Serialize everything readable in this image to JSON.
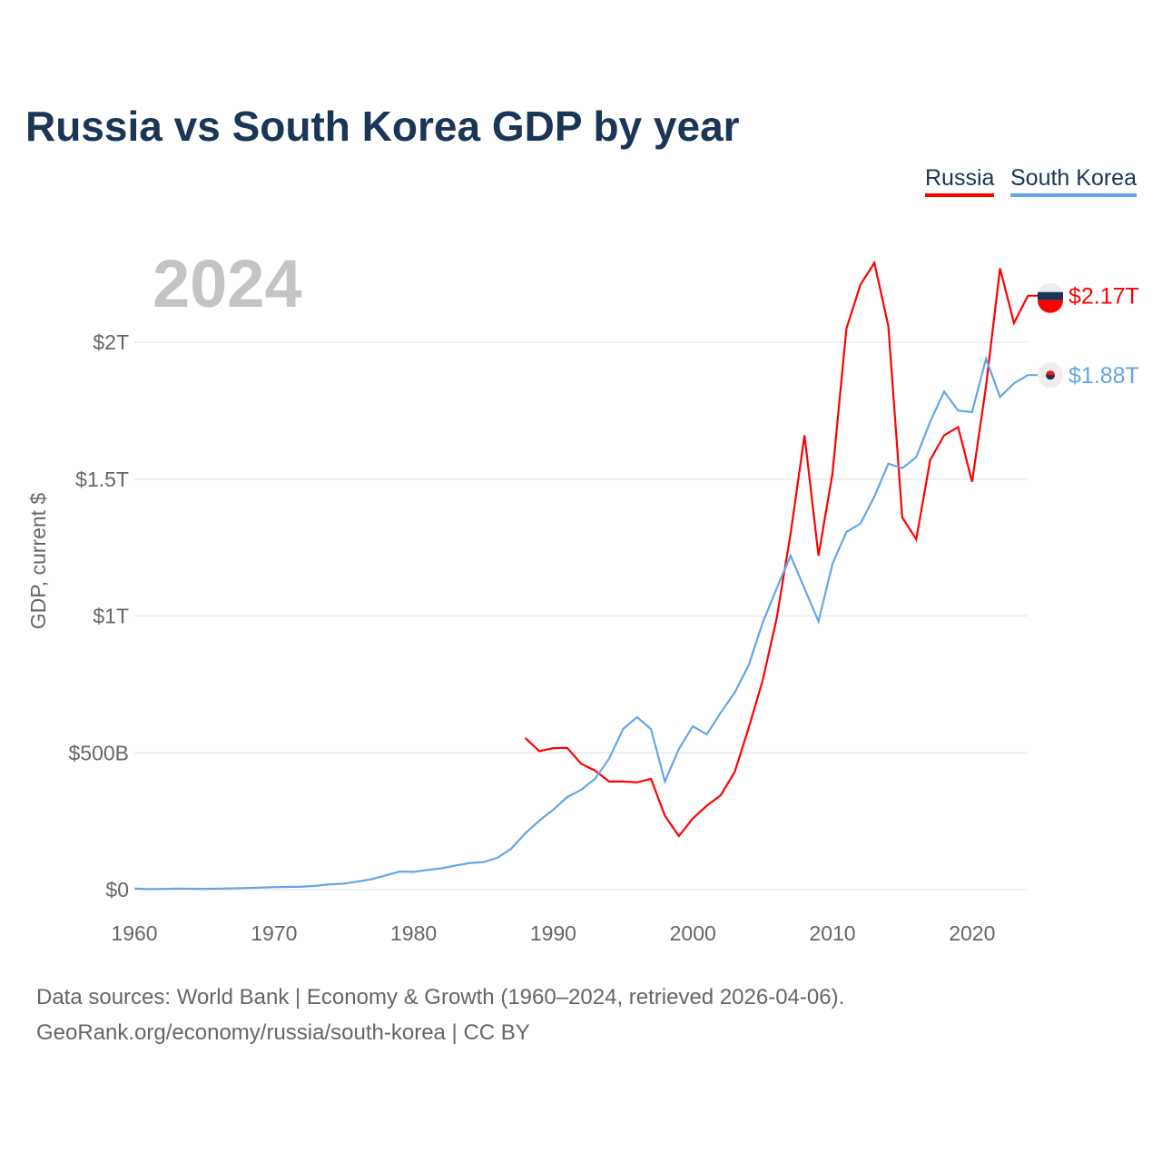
{
  "chart_data": {
    "type": "line",
    "title": "Russia vs South Korea GDP by year",
    "ylabel": "GDP, current $",
    "xlabel": "",
    "year_label": "2024",
    "xlim": [
      1960,
      2024
    ],
    "ylim": [
      0,
      2.3
    ],
    "x_ticks": [
      1960,
      1970,
      1980,
      1990,
      2000,
      2010,
      2020
    ],
    "y_ticks": [
      {
        "v": 0,
        "label": "$0"
      },
      {
        "v": 0.5,
        "label": "$500B"
      },
      {
        "v": 1,
        "label": "$1T"
      },
      {
        "v": 1.5,
        "label": "$1.5T"
      },
      {
        "v": 2,
        "label": "$2T"
      }
    ],
    "units": "trillions USD",
    "series": [
      {
        "name": "Russia",
        "color": "#ff0000",
        "end_label": "$2.17T",
        "start_year": 1988,
        "values": [
          0.554,
          0.506,
          0.517,
          0.518,
          0.46,
          0.435,
          0.395,
          0.395,
          0.392,
          0.405,
          0.27,
          0.196,
          0.26,
          0.307,
          0.345,
          0.43,
          0.591,
          0.764,
          0.99,
          1.3,
          1.66,
          1.22,
          1.52,
          2.05,
          2.21,
          2.29,
          2.06,
          1.36,
          1.28,
          1.57,
          1.66,
          1.69,
          1.49,
          1.84,
          2.27,
          2.07,
          2.17
        ]
      },
      {
        "name": "South Korea",
        "color": "#63a6e8",
        "end_label": "$1.88T",
        "start_year": 1960,
        "values": [
          0.004,
          0.002,
          0.0027,
          0.0039,
          0.0034,
          0.003,
          0.0037,
          0.0047,
          0.006,
          0.0075,
          0.009,
          0.0099,
          0.0108,
          0.014,
          0.0195,
          0.0218,
          0.0298,
          0.0384,
          0.052,
          0.066,
          0.065,
          0.072,
          0.078,
          0.088,
          0.097,
          0.101,
          0.116,
          0.15,
          0.206,
          0.252,
          0.292,
          0.338,
          0.365,
          0.405,
          0.478,
          0.587,
          0.63,
          0.587,
          0.395,
          0.514,
          0.597,
          0.567,
          0.647,
          0.72,
          0.82,
          0.975,
          1.1,
          1.22,
          1.1,
          0.98,
          1.19,
          1.307,
          1.337,
          1.436,
          1.556,
          1.54,
          1.58,
          1.71,
          1.82,
          1.75,
          1.745,
          1.94,
          1.8,
          1.85,
          1.88
        ]
      }
    ],
    "legend": "top-right"
  },
  "footer": {
    "line1": "Data sources: World Bank | Economy & Growth (1960–2024, retrieved 2026-04-06).",
    "line2": "GeoRank.org/economy/russia/south-korea | CC BY"
  }
}
